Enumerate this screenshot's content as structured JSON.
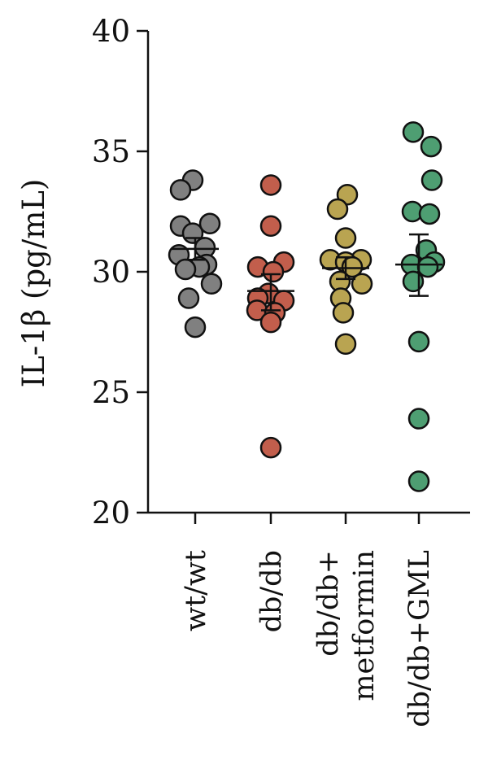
{
  "chart_data": {
    "type": "scatter",
    "ylabel": "IL-1β (pg/mL)",
    "ylim": [
      20,
      40
    ],
    "yticks": [
      20,
      25,
      30,
      35,
      40
    ],
    "categories": [
      [
        "wt/wt"
      ],
      [
        "db/db"
      ],
      [
        "db/db+",
        "metformin"
      ],
      [
        "db/db+GML"
      ]
    ],
    "series": [
      {
        "color": "#808080",
        "values": [
          33.8,
          33.4,
          32.0,
          31.9,
          31.6,
          31.0,
          30.7,
          30.3,
          30.2,
          30.1,
          29.5,
          28.9,
          27.7
        ],
        "mean": 30.95,
        "sem": [
          30.5,
          31.4
        ]
      },
      {
        "color": "#C25E4C",
        "values": [
          33.6,
          31.9,
          30.4,
          30.2,
          30.0,
          29.1,
          28.9,
          28.8,
          28.4,
          28.3,
          27.9,
          22.7
        ],
        "mean": 29.2,
        "sem": [
          28.4,
          29.9
        ]
      },
      {
        "color": "#B9A451",
        "values": [
          33.2,
          32.6,
          31.4,
          30.5,
          30.5,
          30.4,
          30.2,
          29.6,
          29.5,
          28.9,
          28.3,
          27.0
        ],
        "mean": 30.15,
        "sem": [
          29.7,
          30.6
        ]
      },
      {
        "color": "#4E9E72",
        "values": [
          35.8,
          35.2,
          33.8,
          32.5,
          32.4,
          30.9,
          30.4,
          30.3,
          30.2,
          29.6,
          27.1,
          23.9,
          21.3
        ],
        "mean": 30.3,
        "sem": [
          29.0,
          31.55
        ]
      }
    ]
  }
}
